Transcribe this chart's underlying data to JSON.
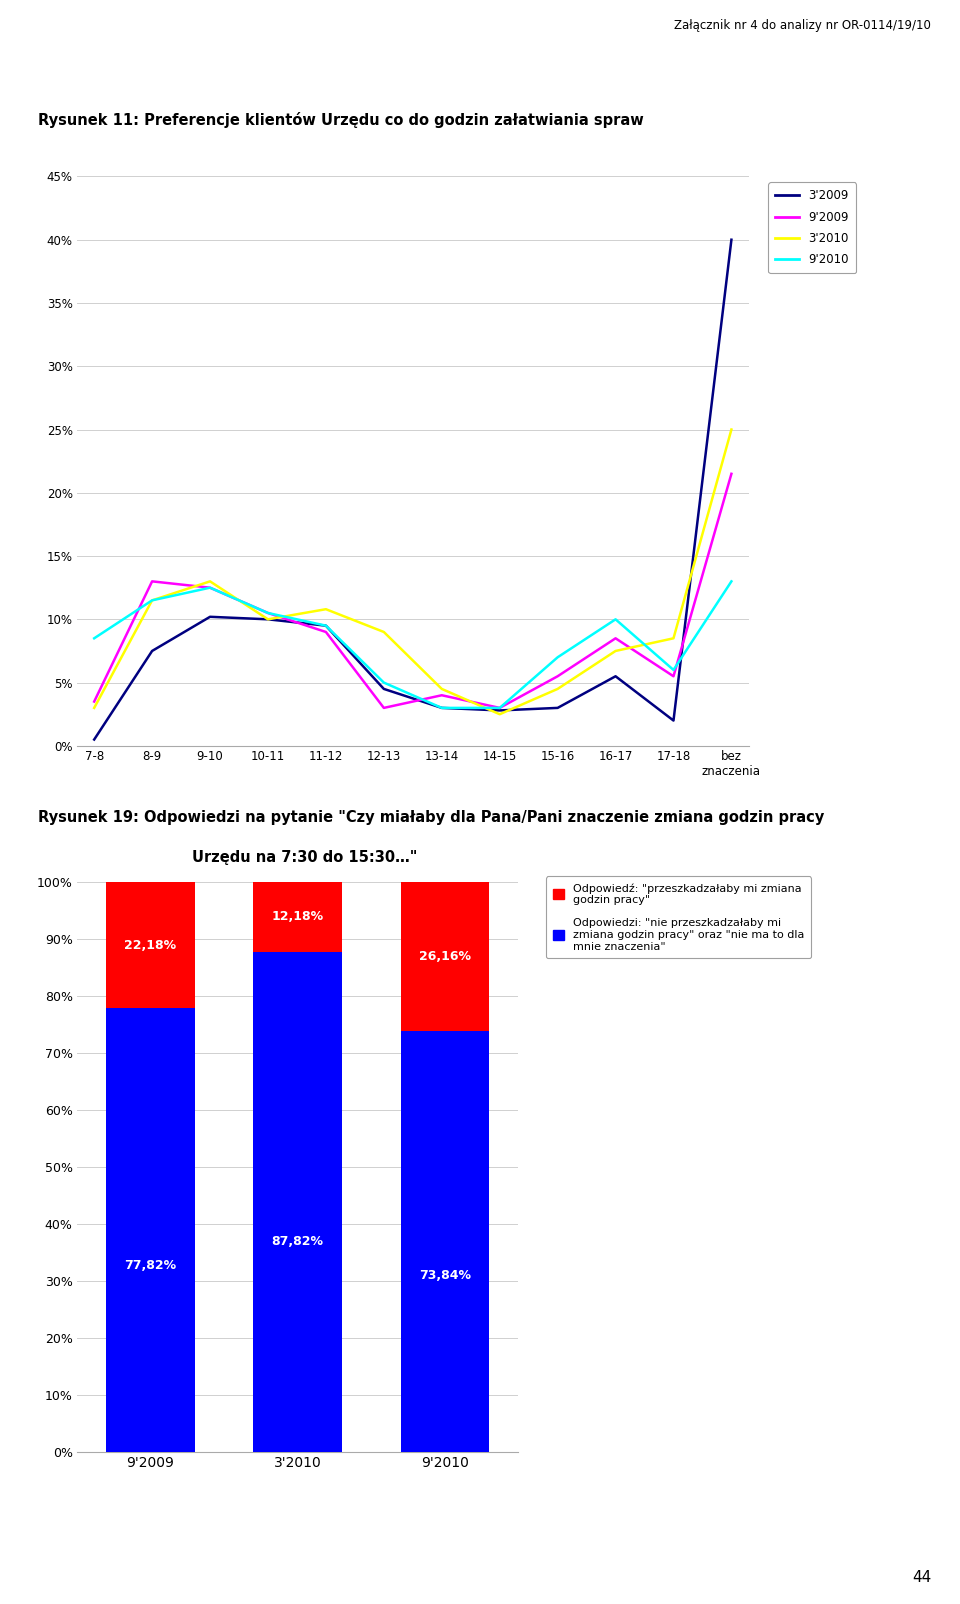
{
  "header": "Załącznik nr 4 do analizy nr OR-0114/19/10",
  "page_number": "44",
  "chart1_title": "Rysunek 11: Preferencje klientów Urzędu co do godzin załatwiania spraw",
  "chart1_categories": [
    "7-8",
    "8-9",
    "9-10",
    "10-11",
    "11-12",
    "12-13",
    "13-14",
    "14-15",
    "15-16",
    "16-17",
    "17-18",
    "bez\nznaczenia"
  ],
  "chart1_series": {
    "3'2009": {
      "color": "#000080",
      "values": [
        0.5,
        7.5,
        10.2,
        10.0,
        9.5,
        4.5,
        3.0,
        2.8,
        3.0,
        5.5,
        2.0,
        40.0
      ]
    },
    "9'2009": {
      "color": "#FF00FF",
      "values": [
        3.5,
        13.0,
        12.5,
        10.5,
        9.0,
        3.0,
        4.0,
        3.0,
        5.5,
        8.5,
        5.5,
        21.5
      ]
    },
    "3'2010": {
      "color": "#FFFF00",
      "values": [
        3.0,
        11.5,
        13.0,
        10.0,
        10.8,
        9.0,
        4.5,
        2.5,
        4.5,
        7.5,
        8.5,
        25.0
      ]
    },
    "9'2010": {
      "color": "#00FFFF",
      "values": [
        8.5,
        11.5,
        12.5,
        10.5,
        9.5,
        5.0,
        3.0,
        3.0,
        7.0,
        10.0,
        6.0,
        13.0
      ]
    }
  },
  "chart1_ylim": [
    0,
    45
  ],
  "chart1_yticks": [
    0,
    5,
    10,
    15,
    20,
    25,
    30,
    35,
    40,
    45
  ],
  "chart1_ytick_labels": [
    "0%",
    "5%",
    "10%",
    "15%",
    "20%",
    "25%",
    "30%",
    "35%",
    "40%",
    "45%"
  ],
  "chart2_title_line1": "Rysunek 19: Odpowiedzi na pytanie \"Czy miałaby dla Pana/Pani znaczenie zmiana godzin pracy",
  "chart2_title_line2": "Urzędu na 7:30 do 15:30…\"",
  "chart2_categories": [
    "9'2009",
    "3'2010",
    "9'2010"
  ],
  "chart2_blue_values": [
    77.82,
    87.82,
    73.84
  ],
  "chart2_red_values": [
    22.18,
    12.18,
    26.16
  ],
  "chart2_blue_color": "#0000FF",
  "chart2_red_color": "#FF0000",
  "chart2_blue_labels": [
    "77,82%",
    "87,82%",
    "73,84%"
  ],
  "chart2_red_labels": [
    "22,18%",
    "12,18%",
    "26,16%"
  ],
  "chart2_legend1": "Odpowiedź: \"przeszkadzałaby mi zmiana\ngodzin pracy\"",
  "chart2_legend2": "Odpowiedzi: \"nie przeszkadzałaby mi\nzmiana godzin pracy\" oraz \"nie ma to dla\nmnie znaczenia\""
}
